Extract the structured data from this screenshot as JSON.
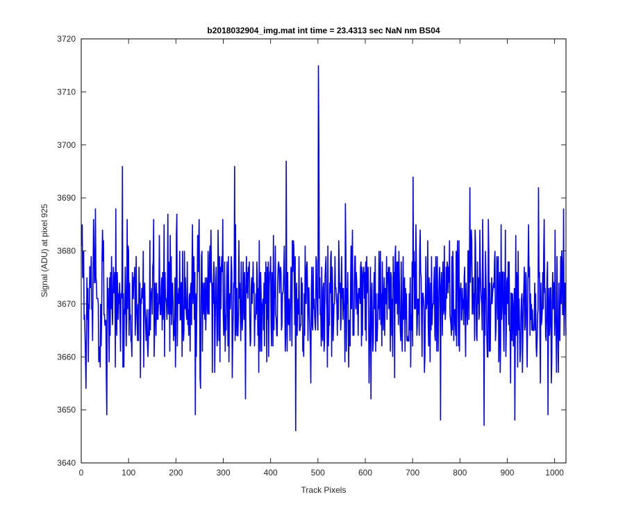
{
  "chart_data": {
    "type": "line",
    "title": "b2018032904_img.mat int time = 23.4313 sec  NaN nm BS04",
    "xlabel": "Track Pixels",
    "ylabel": "Signal (ADU) at pixel 925",
    "xlim": [
      0,
      1024
    ],
    "ylim": [
      3640,
      3720
    ],
    "xticks": [
      0,
      100,
      200,
      300,
      400,
      500,
      600,
      700,
      800,
      900,
      1000
    ],
    "yticks": [
      3640,
      3650,
      3660,
      3670,
      3680,
      3690,
      3700,
      3710,
      3720
    ],
    "grid": false,
    "legend": "none",
    "series_color": "#0000ff",
    "axis_color": "#262626",
    "noise": {
      "n_points": 1024,
      "mean": 3671,
      "std": 6.5,
      "min": 3646,
      "max": 3715
    },
    "notable_points": [
      {
        "x": 53,
        "y": 3649
      },
      {
        "x": 86,
        "y": 3696
      },
      {
        "x": 240,
        "y": 3649
      },
      {
        "x": 323,
        "y": 3696
      },
      {
        "x": 432,
        "y": 3697
      },
      {
        "x": 452,
        "y": 3646
      },
      {
        "x": 500,
        "y": 3715
      },
      {
        "x": 501,
        "y": 3701
      },
      {
        "x": 700,
        "y": 3694
      },
      {
        "x": 758,
        "y": 3648
      },
      {
        "x": 820,
        "y": 3692
      },
      {
        "x": 850,
        "y": 3647
      },
      {
        "x": 915,
        "y": 3648
      },
      {
        "x": 965,
        "y": 3692
      },
      {
        "x": 985,
        "y": 3649
      }
    ]
  }
}
